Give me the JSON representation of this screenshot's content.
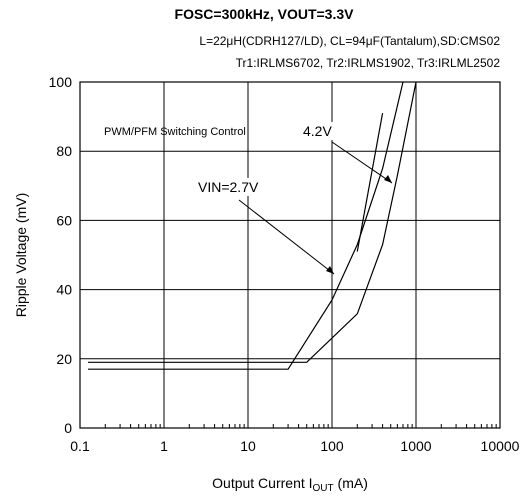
{
  "header": {
    "title": "FOSC=300kHz, VOUT=3.3V",
    "conditions_line1": "L=22μH(CDRH127/LD), CL=94μF(Tantalum),SD:CMS02",
    "conditions_line2": "Tr1:IRLMS6702, Tr2:IRLMS1902, Tr3:IRLML2502"
  },
  "chart_data": {
    "type": "line",
    "title": "FOSC=300kHz, VOUT=3.3V",
    "subtitle": "L=22μH(CDRH127/LD), CL=94μF(Tantalum),SD:CMS02 / Tr1:IRLMS6702, Tr2:IRLMS1902, Tr3:IRLML2502",
    "xlabel": "Output Current IOUT (mA)",
    "ylabel": "Ripple Voltage (mV)",
    "x_scale": "log",
    "xlim": [
      0.1,
      10000
    ],
    "ylim": [
      0,
      100
    ],
    "x_ticks": [
      0.1,
      1,
      10,
      100,
      1000,
      10000
    ],
    "x_tick_labels": [
      "0.1",
      "1",
      "10",
      "100",
      "1000",
      "10000"
    ],
    "y_ticks": [
      0,
      20,
      40,
      60,
      80,
      100
    ],
    "y_tick_labels": [
      "0",
      "20",
      "40",
      "60",
      "80",
      "100"
    ],
    "grid": true,
    "series": [
      {
        "name": "VIN=2.7V",
        "x": [
          0.1,
          30,
          100,
          200,
          400,
          700
        ],
        "y": [
          17,
          17,
          37,
          53,
          75,
          100
        ]
      },
      {
        "name": "4.2V",
        "x": [
          0.1,
          50,
          200,
          400,
          600,
          1000
        ],
        "y": [
          19,
          19,
          33,
          53,
          73,
          100
        ]
      },
      {
        "name": "",
        "x": [
          400
        ],
        "y": [
          91
        ]
      }
    ],
    "annotations": [
      {
        "text": "PWM/PFM Switching Control"
      },
      {
        "text": "VIN=2.7V"
      },
      {
        "text": "4.2V"
      }
    ]
  }
}
